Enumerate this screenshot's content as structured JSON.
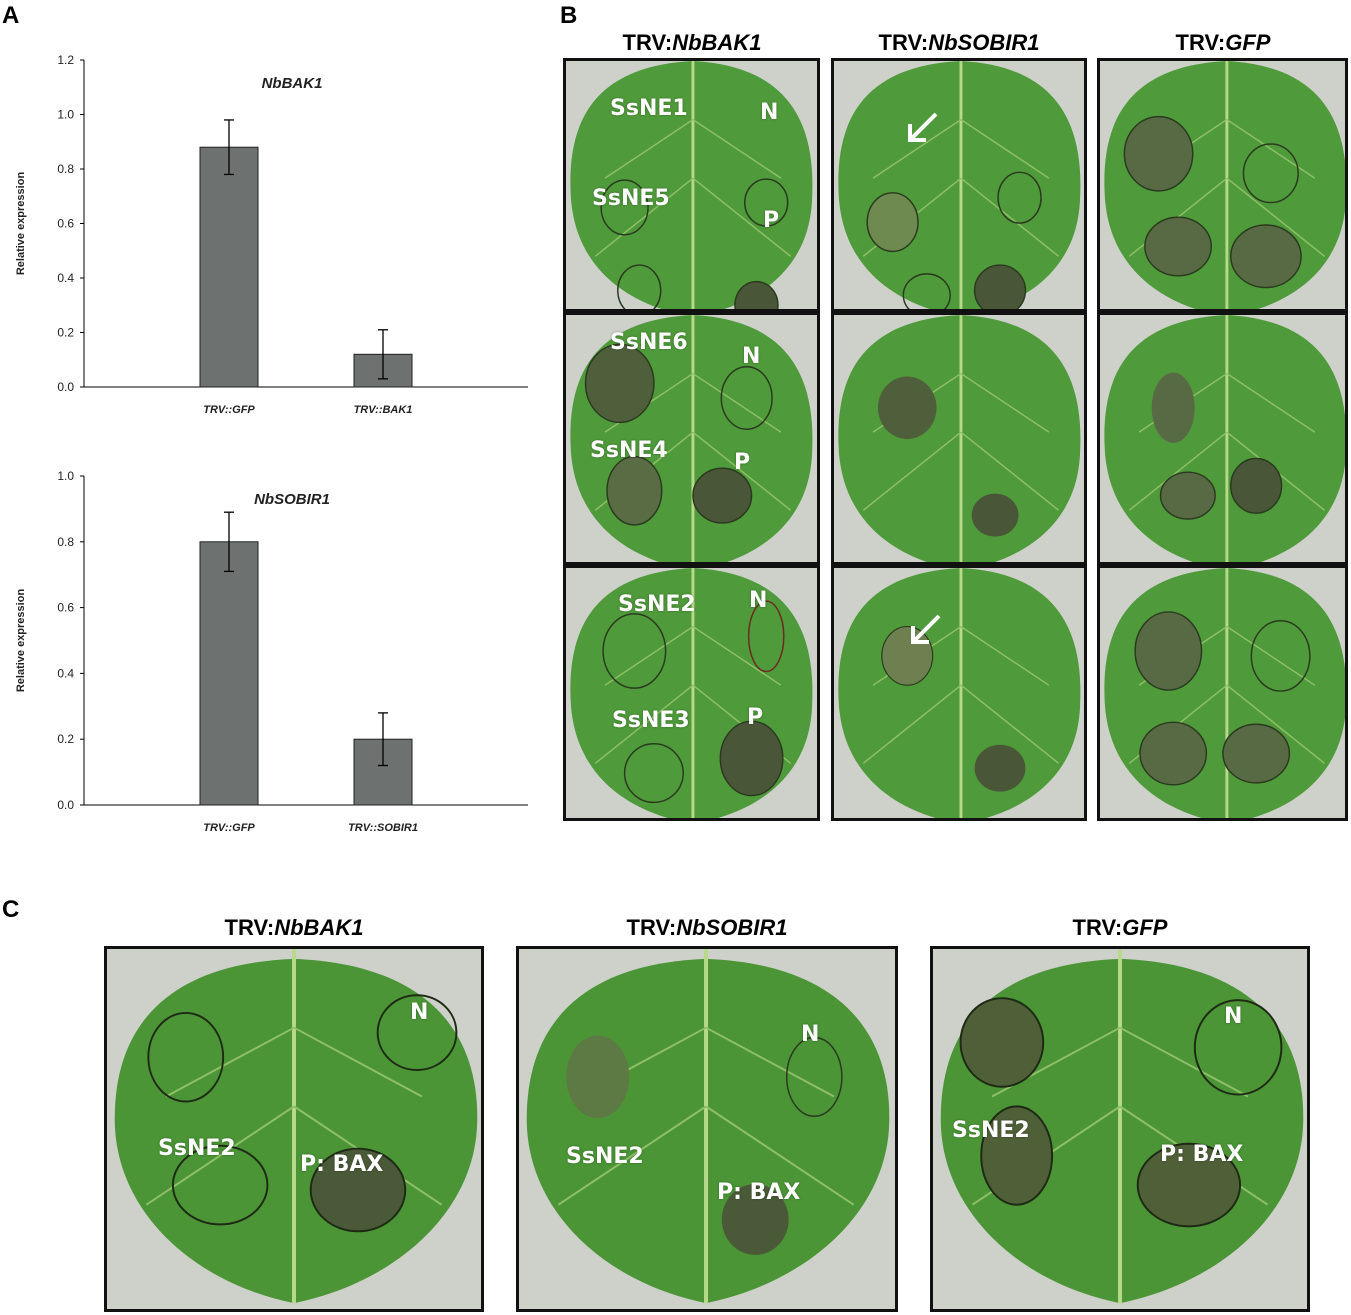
{
  "panels": {
    "a": "A",
    "b": "B",
    "c": "C"
  },
  "chart_data": [
    {
      "type": "bar",
      "title": "NbBAK1",
      "ylabel": "Relative expression",
      "categories": [
        "TRV::GFP",
        "TRV::BAK1"
      ],
      "values": [
        0.88,
        0.12
      ],
      "errors": [
        0.1,
        0.09
      ],
      "ylim": [
        0,
        1.2
      ],
      "yticks": [
        "0.0",
        "0.2",
        "0.4",
        "0.6",
        "0.8",
        "1.0",
        "1.2"
      ],
      "grid": false,
      "bar_color": "#6d7270"
    },
    {
      "type": "bar",
      "title": "NbSOBIR1",
      "ylabel": "Relative expression",
      "categories": [
        "TRV::GFP",
        "TRV::SOBIR1"
      ],
      "values": [
        0.8,
        0.2
      ],
      "errors": [
        0.09,
        0.08
      ],
      "ylim": [
        0,
        1.0
      ],
      "yticks": [
        "0.0",
        "0.2",
        "0.4",
        "0.6",
        "0.8",
        "1.0"
      ],
      "grid": false,
      "bar_color": "#6d7270"
    }
  ],
  "panel_b": {
    "columns": [
      {
        "prefix": "TRV:",
        "gene": "NbBAK1"
      },
      {
        "prefix": "TRV:",
        "gene": "NbSOBIR1"
      },
      {
        "prefix": "TRV:",
        "gene": "GFP"
      }
    ],
    "rows": [
      {
        "labels": [
          "SsNE1",
          "SsNE5",
          "N",
          "P"
        ]
      },
      {
        "labels": [
          "SsNE6",
          "SsNE4",
          "N",
          "P"
        ]
      },
      {
        "labels": [
          "SsNE2",
          "SsNE3",
          "N",
          "P"
        ]
      }
    ]
  },
  "panel_c": {
    "columns": [
      {
        "prefix": "TRV:",
        "gene": "NbBAK1"
      },
      {
        "prefix": "TRV:",
        "gene": "NbSOBIR1"
      },
      {
        "prefix": "TRV:",
        "gene": "GFP"
      }
    ],
    "labels": {
      "sample": "SsNE2",
      "negative": "N",
      "positive": "P: BAX"
    }
  },
  "colors": {
    "leaf": "#4f9a3a",
    "leaf_dark": "#3f8230",
    "vein": "#b9d98a",
    "lesion": "#4a5a3a",
    "background": "#cfd3cc"
  }
}
